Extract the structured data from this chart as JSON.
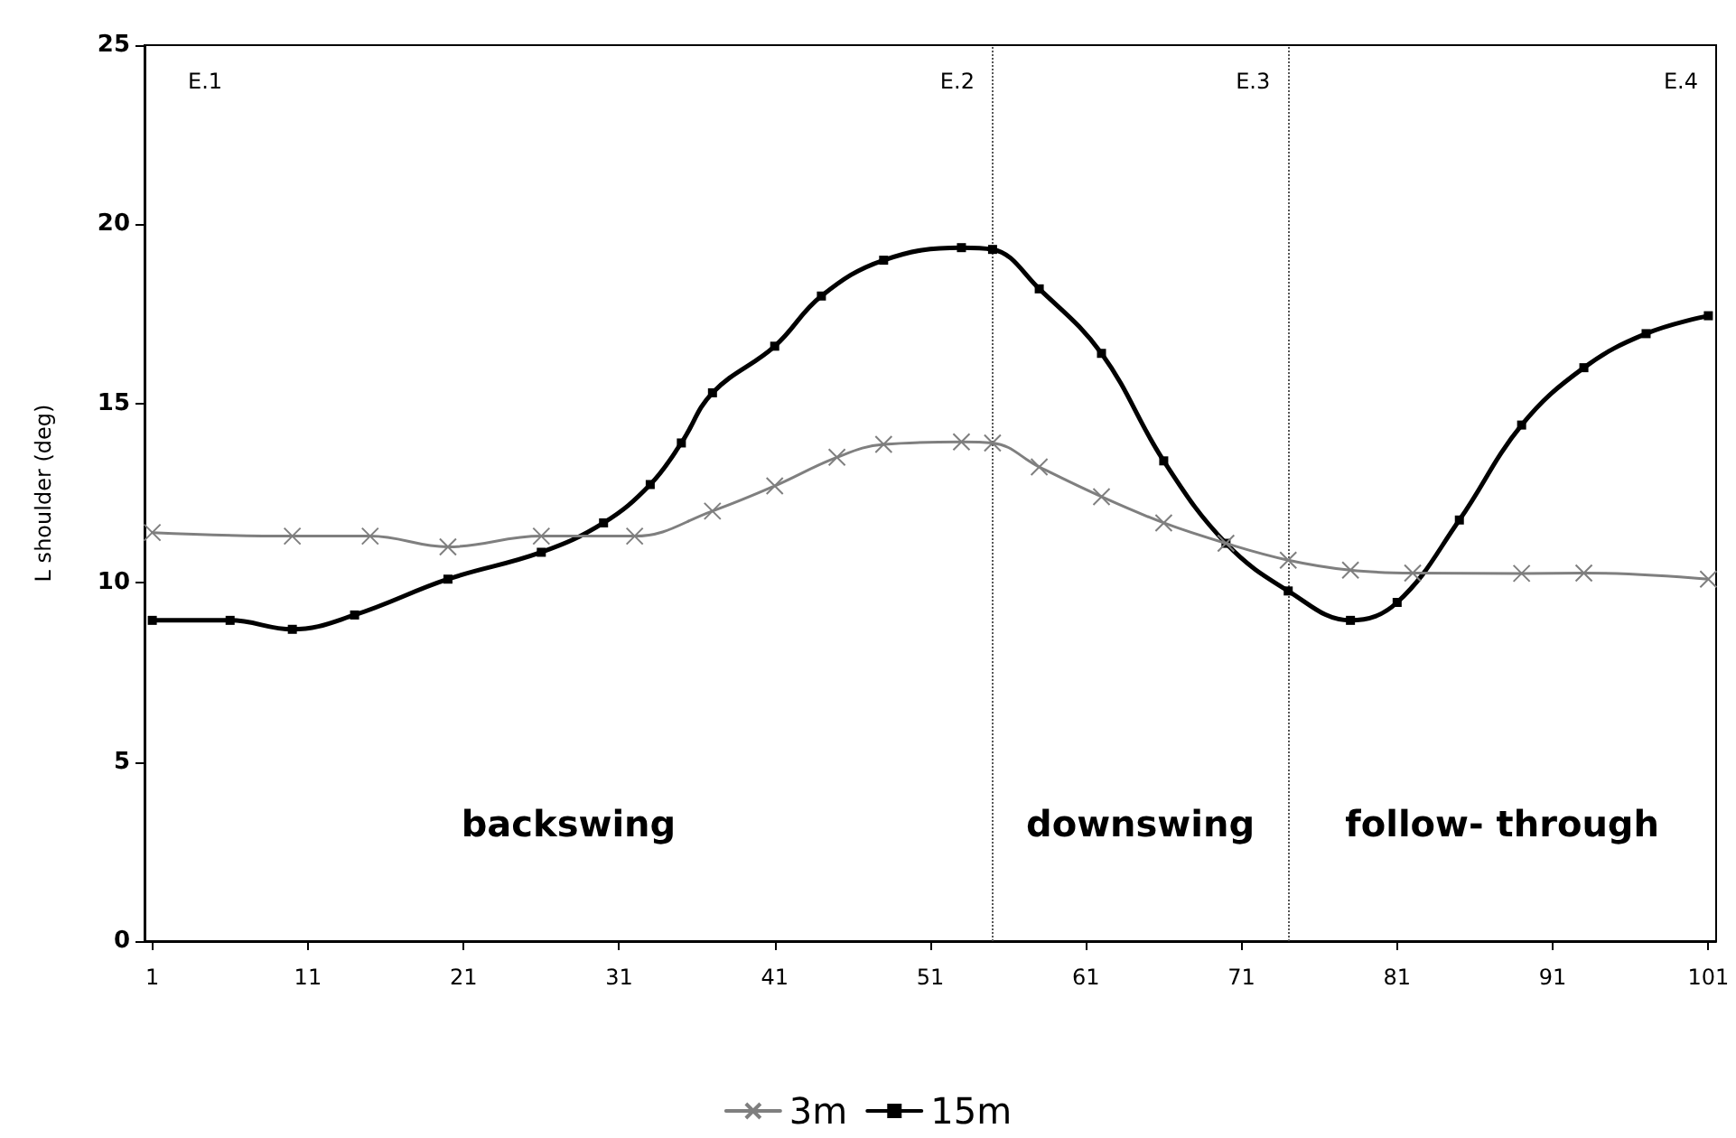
{
  "chart_data": {
    "type": "line",
    "ylabel": "L shoulder (deg)",
    "xlim": [
      0.5,
      101.5
    ],
    "xticks": [
      1,
      11,
      21,
      31,
      41,
      51,
      61,
      71,
      81,
      91,
      101
    ],
    "ylim": [
      0,
      25
    ],
    "yticks": [
      0,
      5,
      10,
      15,
      20,
      25
    ],
    "grid": false,
    "legend": "bottom",
    "series": [
      {
        "name": "3m",
        "color": "#7f7f7f",
        "marker": "cross",
        "x": [
          1,
          10,
          15,
          20,
          26,
          32,
          37,
          41,
          45,
          48,
          53,
          55,
          58,
          62,
          66,
          70,
          74,
          78,
          82,
          89,
          93,
          101
        ],
        "values": [
          11.4,
          11.3,
          11.3,
          11.0,
          11.3,
          11.3,
          12.0,
          12.7,
          13.5,
          13.86,
          13.93,
          13.9,
          13.23,
          12.4,
          11.67,
          11.1,
          10.63,
          10.35,
          10.27,
          10.26,
          10.27,
          10.1
        ]
      },
      {
        "name": "15m",
        "color": "#000000",
        "marker": "square",
        "x": [
          1,
          6,
          10,
          14,
          20,
          26,
          30,
          33,
          35,
          37,
          41,
          44,
          48,
          53,
          55,
          58,
          62,
          66,
          70,
          74,
          78,
          81,
          85,
          89,
          93,
          97,
          101
        ],
        "values": [
          8.95,
          8.95,
          8.7,
          9.1,
          10.1,
          10.85,
          11.67,
          12.74,
          13.9,
          15.3,
          16.6,
          18.0,
          19.0,
          19.35,
          19.3,
          18.2,
          16.4,
          13.4,
          11.1,
          9.77,
          8.95,
          9.45,
          11.75,
          14.4,
          16.0,
          16.95,
          17.45
        ]
      }
    ],
    "ref_lines": [
      {
        "axis": "x",
        "value": 55,
        "color": "#555555",
        "line_style": "dotted"
      },
      {
        "axis": "x",
        "value": 74,
        "color": "#555555",
        "line_style": "dotted"
      }
    ],
    "annotations": [
      "E.1",
      "E.2",
      "E.3",
      "E.4",
      "backswing",
      "downswing",
      "follow- through"
    ]
  }
}
